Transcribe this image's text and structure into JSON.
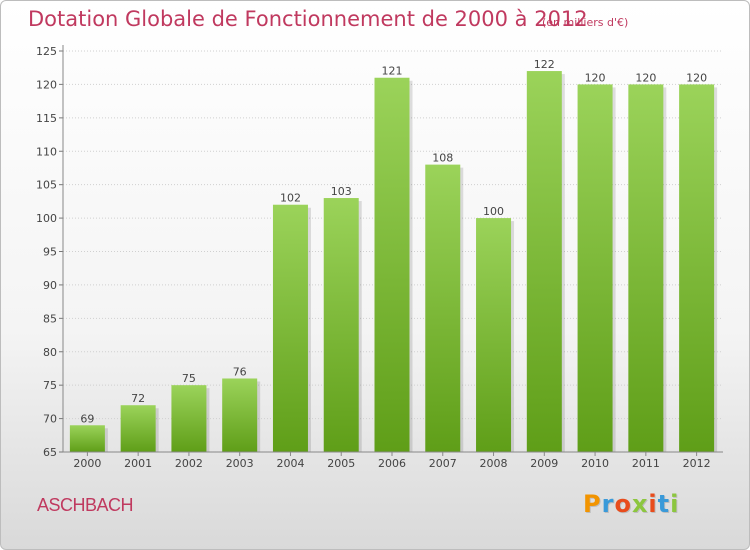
{
  "header": {
    "title": "Dotation Globale de Fonctionnement de 2000 à 2012",
    "unit": "(en milliers d'€)"
  },
  "footer": {
    "commune": "ASCHBACH",
    "logo_text": "Proxiti",
    "logo_colors": [
      "#f29400",
      "#3a9ad9",
      "#e84c1c",
      "#8cc63f",
      "#e84c1c",
      "#3a9ad9",
      "#8cc63f"
    ]
  },
  "colors": {
    "bar_top": "#9bd35a",
    "bar_bottom": "#5f9e18",
    "title": "#c0395f"
  },
  "chart_data": {
    "type": "bar",
    "categories": [
      "2000",
      "2001",
      "2002",
      "2003",
      "2004",
      "2005",
      "2006",
      "2007",
      "2008",
      "2009",
      "2010",
      "2011",
      "2012"
    ],
    "values": [
      69,
      72,
      75,
      76,
      102,
      103,
      121,
      108,
      100,
      122,
      120,
      120,
      120
    ],
    "ylim": [
      65,
      125
    ],
    "yticks": [
      65,
      70,
      75,
      80,
      85,
      90,
      95,
      100,
      105,
      110,
      115,
      120,
      125
    ],
    "grid": true
  }
}
